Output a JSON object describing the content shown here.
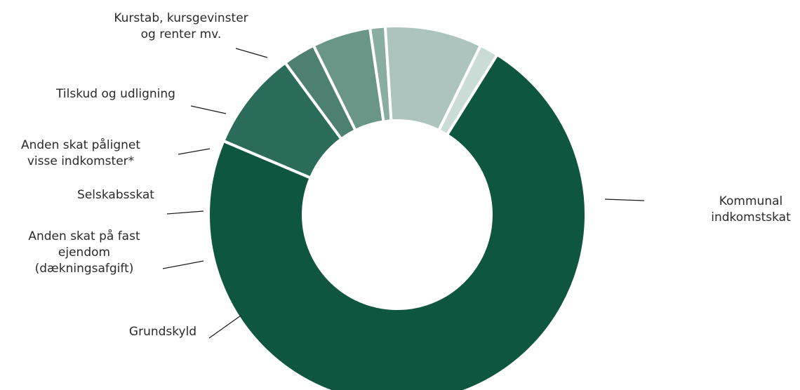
{
  "chart_data": {
    "type": "pie",
    "variant": "donut",
    "title": "",
    "slices": [
      {
        "label": "Kommunal indkomstskat",
        "label_lines": [
          "Kommunal",
          "indkomstskat"
        ],
        "value": 72.5,
        "color": "#0f5641"
      },
      {
        "label": "Grundskyld",
        "label_lines": [
          "Grundskyld"
        ],
        "value": 8.5,
        "color": "#2b6b5a"
      },
      {
        "label": "Anden skat på fast ejendom (dækningsafgift)",
        "label_lines": [
          "Anden skat på fast",
          "ejendom",
          "(dækningsafgift)"
        ],
        "value": 2.8,
        "color": "#4d8070"
      },
      {
        "label": "Selskabsskat",
        "label_lines": [
          "Selskabsskat"
        ],
        "value": 5.0,
        "color": "#6a9687"
      },
      {
        "label": "Anden skat pålignet visse indkomster*",
        "label_lines": [
          "Anden skat pålignet",
          "visse indkomster*"
        ],
        "value": 1.3,
        "color": "#8aada2"
      },
      {
        "label": "Tilskud og udligning",
        "label_lines": [
          "Tilskud og udligning"
        ],
        "value": 8.3,
        "color": "#adc3bd"
      },
      {
        "label": "Kurstab, kursgevinster og renter mv.",
        "label_lines": [
          "Kurstab, kursgevinster",
          "og renter mv."
        ],
        "value": 1.6,
        "color": "#cbdbd5"
      }
    ],
    "legend": "none"
  }
}
